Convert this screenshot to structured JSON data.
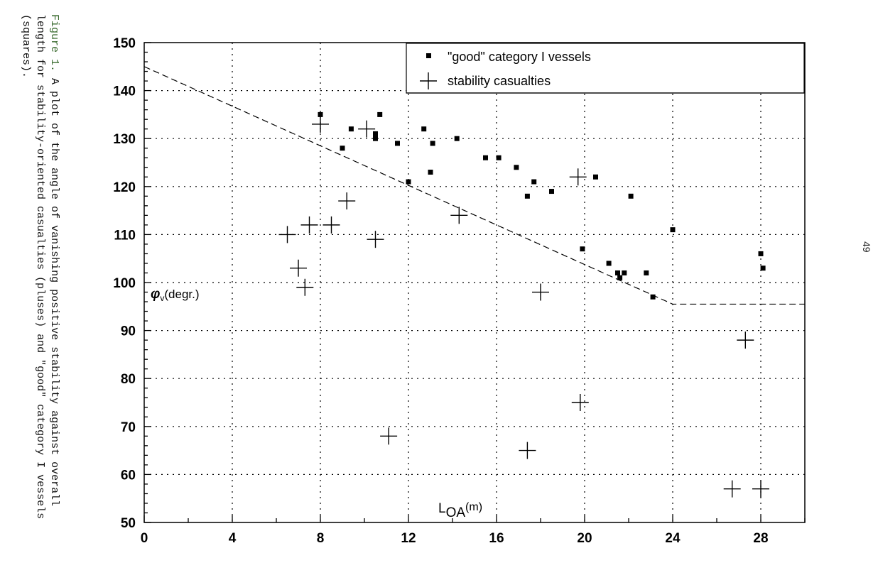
{
  "caption": {
    "label": "Figure 1.",
    "text": "A plot of the angle of vanishing positive stability against overall length for stability-oriented casualties (pluses) and \"good\" category I vessels (squares)."
  },
  "page_number": "49",
  "chart_data": {
    "type": "scatter",
    "xlim": [
      0,
      30
    ],
    "ylim": [
      50,
      150
    ],
    "x_ticks": [
      0,
      4,
      8,
      12,
      16,
      20,
      24,
      28
    ],
    "y_ticks": [
      50,
      60,
      70,
      80,
      90,
      100,
      110,
      120,
      130,
      140,
      150
    ],
    "x_tick_labels": [
      "0",
      "4",
      "8",
      "12",
      "16",
      "20",
      "24",
      "28"
    ],
    "y_tick_labels": [
      "50",
      "60",
      "70",
      "80",
      "90",
      "100",
      "110",
      "120",
      "130",
      "140",
      "150"
    ],
    "grid": true,
    "legend_position": "top-right",
    "xlabel": {
      "main": "L",
      "sub": "OA",
      "unit": "(m)"
    },
    "ylabel": {
      "symbol": "φ",
      "sub": "v",
      "unit": "(degr.)"
    },
    "series": [
      {
        "name": "\"good\" category I vessels",
        "marker": "square",
        "points": [
          [
            8.0,
            135
          ],
          [
            9.0,
            128
          ],
          [
            9.4,
            132
          ],
          [
            10.5,
            131
          ],
          [
            10.5,
            130
          ],
          [
            10.7,
            135
          ],
          [
            11.5,
            129
          ],
          [
            12.0,
            121
          ],
          [
            12.7,
            132
          ],
          [
            13.0,
            123
          ],
          [
            13.1,
            129
          ],
          [
            14.2,
            130
          ],
          [
            15.5,
            126
          ],
          [
            16.1,
            126
          ],
          [
            16.9,
            124
          ],
          [
            17.4,
            118
          ],
          [
            17.7,
            121
          ],
          [
            18.5,
            119
          ],
          [
            19.9,
            107
          ],
          [
            20.5,
            122
          ],
          [
            21.1,
            104
          ],
          [
            21.5,
            102
          ],
          [
            21.6,
            101
          ],
          [
            21.8,
            102
          ],
          [
            22.1,
            118
          ],
          [
            22.8,
            102
          ],
          [
            23.1,
            97
          ],
          [
            24.0,
            111
          ],
          [
            28.0,
            106
          ],
          [
            28.1,
            103
          ]
        ]
      },
      {
        "name": "stability casualties",
        "marker": "plus",
        "points": [
          [
            6.5,
            110
          ],
          [
            7.0,
            103
          ],
          [
            7.3,
            99
          ],
          [
            7.5,
            112
          ],
          [
            8.0,
            133
          ],
          [
            8.5,
            112
          ],
          [
            9.2,
            117
          ],
          [
            10.1,
            132
          ],
          [
            10.5,
            109
          ],
          [
            11.1,
            68
          ],
          [
            14.3,
            114
          ],
          [
            17.4,
            65
          ],
          [
            18.0,
            98
          ],
          [
            19.7,
            122
          ],
          [
            19.8,
            75
          ],
          [
            26.7,
            57
          ],
          [
            27.3,
            88
          ],
          [
            28.0,
            57
          ]
        ]
      }
    ],
    "reference_line": {
      "style": "dashed",
      "points": [
        [
          0,
          145
        ],
        [
          24,
          95.5
        ],
        [
          30,
          95.5
        ]
      ]
    }
  }
}
